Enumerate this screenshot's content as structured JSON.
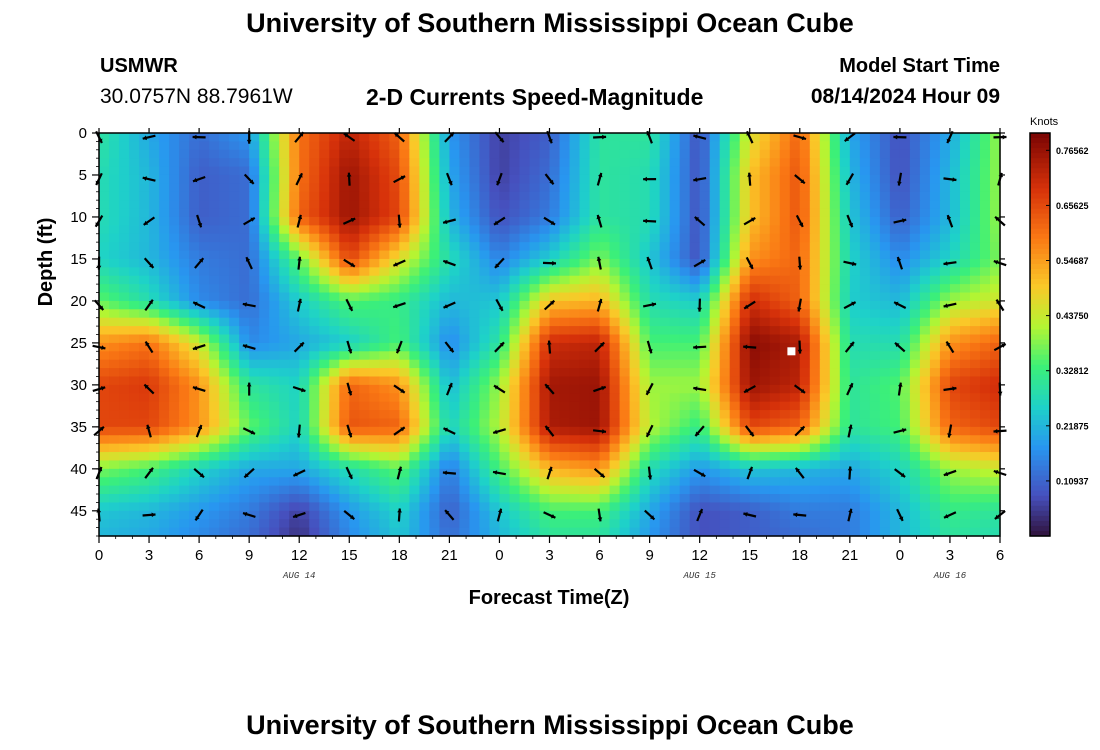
{
  "header": {
    "title": "University of Southern Mississippi Ocean Cube",
    "station": "USMWR",
    "coords": "30.0757N  88.7961W",
    "product": "2-D Currents Speed-Magnitude",
    "model_start_label": "Model Start Time",
    "model_start_value": "08/14/2024 Hour 09"
  },
  "footer": {
    "title": "University of Southern Mississippi Ocean Cube"
  },
  "chart_data": {
    "type": "heatmap",
    "title": "2-D Currents Speed-Magnitude",
    "xlabel": "Forecast Time(Z)",
    "ylabel": "Depth (ft)",
    "x_ticks": [
      "0",
      "3",
      "6",
      "9",
      "12",
      "15",
      "18",
      "21",
      "0",
      "3",
      "6",
      "9",
      "12",
      "15",
      "18",
      "21",
      "0",
      "3",
      "6"
    ],
    "date_labels": [
      {
        "hour_index": 12,
        "label": "AUG 14"
      },
      {
        "hour_index": 36,
        "label": "AUG 15"
      },
      {
        "hour_index": 51,
        "label": "AUG 16"
      }
    ],
    "x_range_hours": [
      0,
      54
    ],
    "y_ticks": [
      0,
      5,
      10,
      15,
      20,
      25,
      30,
      35,
      40,
      45
    ],
    "y_range_ft": [
      0,
      48
    ],
    "colorbar": {
      "label": "Knots",
      "range": [
        0,
        0.8
      ],
      "ticks": [
        "0.76562",
        "0.65625",
        "0.54687",
        "0.43750",
        "0.32812",
        "0.21875",
        "0.10937"
      ],
      "tick_values": [
        0.76562,
        0.65625,
        0.54687,
        0.4375,
        0.32812,
        0.21875,
        0.10937
      ],
      "colormap": "turbo"
    },
    "marker": {
      "hour": 41.5,
      "depth_ft": 26
    },
    "sample_hours": [
      0,
      3,
      6,
      9,
      12,
      15,
      18,
      21,
      24,
      27,
      30,
      33,
      36,
      39,
      42,
      45,
      48,
      51,
      54
    ],
    "sample_depths_ft": [
      0,
      5,
      10,
      15,
      20,
      25,
      30,
      35,
      40,
      45,
      48
    ],
    "speed_knots": [
      [
        0.3,
        0.2,
        0.12,
        0.18,
        0.6,
        0.72,
        0.62,
        0.18,
        0.06,
        0.1,
        0.3,
        0.3,
        0.08,
        0.45,
        0.62,
        0.2,
        0.08,
        0.2,
        0.4
      ],
      [
        0.28,
        0.22,
        0.1,
        0.12,
        0.6,
        0.76,
        0.65,
        0.2,
        0.06,
        0.12,
        0.3,
        0.28,
        0.08,
        0.5,
        0.64,
        0.22,
        0.08,
        0.22,
        0.4
      ],
      [
        0.28,
        0.22,
        0.1,
        0.12,
        0.62,
        0.76,
        0.66,
        0.22,
        0.08,
        0.14,
        0.3,
        0.28,
        0.08,
        0.5,
        0.64,
        0.24,
        0.1,
        0.22,
        0.4
      ],
      [
        0.26,
        0.22,
        0.14,
        0.12,
        0.36,
        0.66,
        0.46,
        0.28,
        0.15,
        0.25,
        0.38,
        0.24,
        0.08,
        0.56,
        0.62,
        0.26,
        0.16,
        0.26,
        0.38
      ],
      [
        0.36,
        0.28,
        0.16,
        0.12,
        0.25,
        0.35,
        0.32,
        0.22,
        0.24,
        0.5,
        0.52,
        0.28,
        0.25,
        0.7,
        0.62,
        0.25,
        0.22,
        0.4,
        0.45
      ],
      [
        0.56,
        0.6,
        0.44,
        0.16,
        0.2,
        0.25,
        0.34,
        0.16,
        0.3,
        0.7,
        0.72,
        0.34,
        0.34,
        0.78,
        0.74,
        0.28,
        0.28,
        0.56,
        0.62
      ],
      [
        0.66,
        0.68,
        0.56,
        0.3,
        0.26,
        0.62,
        0.56,
        0.22,
        0.4,
        0.75,
        0.76,
        0.4,
        0.4,
        0.76,
        0.72,
        0.3,
        0.35,
        0.66,
        0.7
      ],
      [
        0.66,
        0.66,
        0.56,
        0.36,
        0.26,
        0.64,
        0.62,
        0.26,
        0.42,
        0.74,
        0.76,
        0.42,
        0.32,
        0.66,
        0.62,
        0.3,
        0.34,
        0.62,
        0.66
      ],
      [
        0.38,
        0.34,
        0.26,
        0.2,
        0.2,
        0.28,
        0.36,
        0.14,
        0.34,
        0.52,
        0.56,
        0.28,
        0.18,
        0.24,
        0.22,
        0.2,
        0.26,
        0.4,
        0.44
      ],
      [
        0.24,
        0.22,
        0.18,
        0.14,
        0.06,
        0.18,
        0.26,
        0.1,
        0.24,
        0.34,
        0.34,
        0.2,
        0.08,
        0.1,
        0.14,
        0.14,
        0.22,
        0.32,
        0.3
      ],
      [
        0.22,
        0.2,
        0.16,
        0.12,
        0.04,
        0.16,
        0.24,
        0.12,
        0.22,
        0.3,
        0.3,
        0.18,
        0.08,
        0.1,
        0.12,
        0.14,
        0.22,
        0.3,
        0.28
      ]
    ]
  }
}
